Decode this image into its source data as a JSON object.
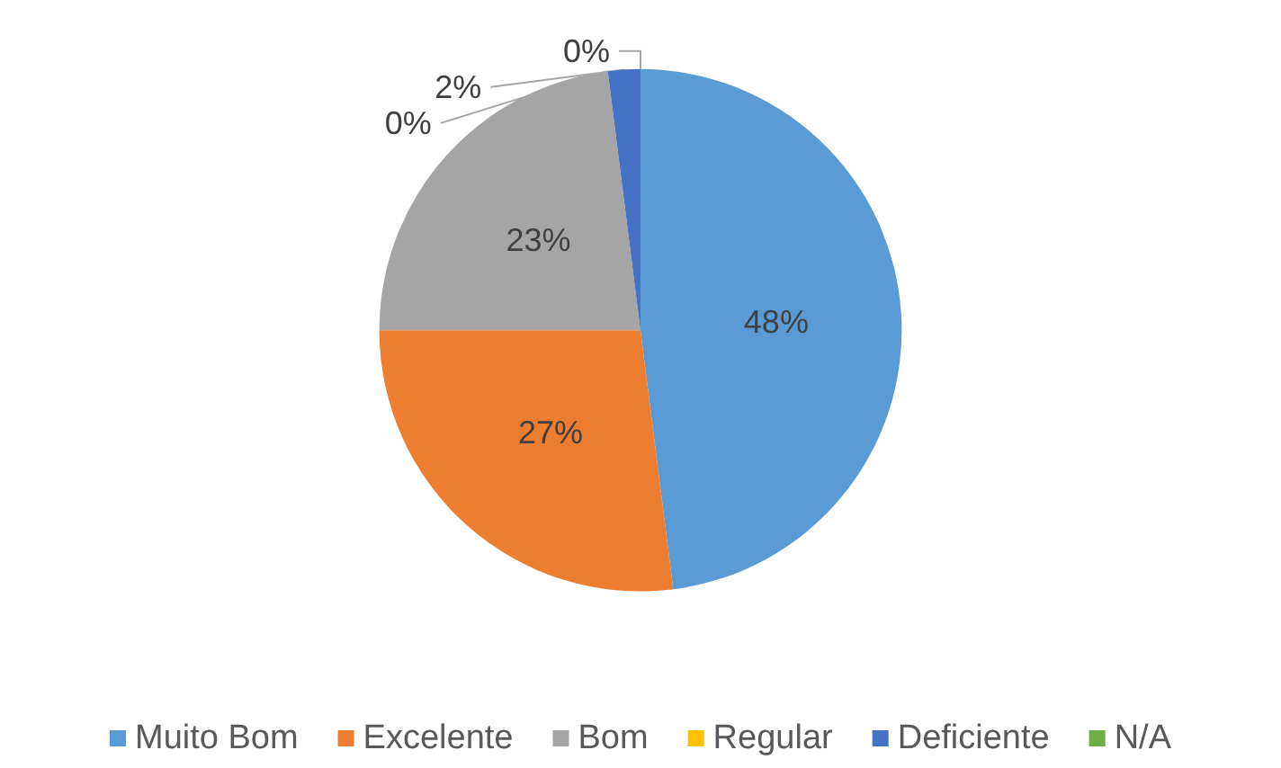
{
  "chart_data": {
    "type": "pie",
    "categories": [
      "Muito Bom",
      "Excelente",
      "Bom",
      "Regular",
      "Deficiente",
      "N/A"
    ],
    "values": [
      48,
      27,
      23,
      0,
      2,
      0
    ],
    "colors": [
      "#5b9bd5",
      "#ed7d31",
      "#a5a5a5",
      "#ffc000",
      "#4472c4",
      "#70ad47"
    ],
    "value_labels": [
      "48%",
      "27%",
      "23%",
      "0%",
      "2%",
      "0%"
    ],
    "legend": "bottom"
  }
}
